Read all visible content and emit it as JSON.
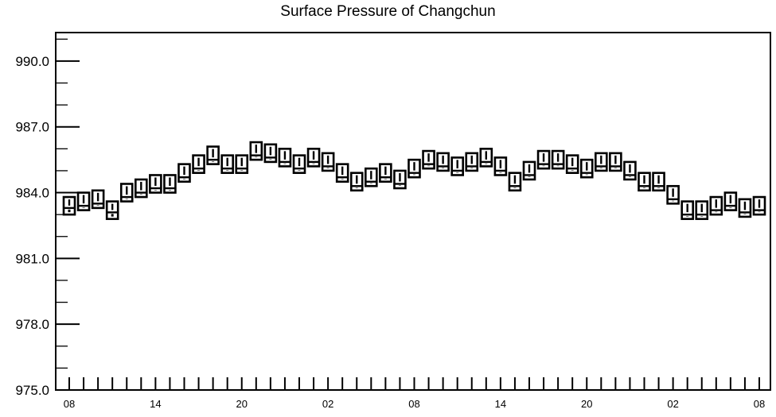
{
  "chart_data": {
    "type": "box",
    "title": "Surface Pressure of Changchun",
    "xlabel": "",
    "ylabel": "",
    "ylim": [
      975.0,
      991.3
    ],
    "y_ticks": [
      "975.0",
      "978.0",
      "981.0",
      "984.0",
      "987.0",
      "990.0"
    ],
    "y_tick_values": [
      975.0,
      978.0,
      981.0,
      984.0,
      987.0,
      990.0
    ],
    "x_tick_labels": [
      "08",
      "14",
      "20",
      "02",
      "08",
      "14",
      "20",
      "02",
      "08"
    ],
    "x_tick_label_index": [
      0,
      6,
      12,
      18,
      24,
      30,
      36,
      42,
      48
    ],
    "hours": [
      8,
      9,
      10,
      11,
      12,
      13,
      14,
      15,
      16,
      17,
      18,
      19,
      20,
      21,
      22,
      23,
      0,
      1,
      2,
      3,
      4,
      5,
      6,
      7,
      8,
      9,
      10,
      11,
      12,
      13,
      14,
      15,
      16,
      17,
      18,
      19,
      20,
      21,
      22,
      23,
      0,
      1,
      2,
      3,
      4,
      5,
      6,
      7,
      8
    ],
    "series": [
      {
        "box_low": [
          983.0,
          983.2,
          983.3,
          982.8,
          983.6,
          983.8,
          984.0,
          984.0,
          984.5,
          984.9,
          985.3,
          984.9,
          984.9,
          985.5,
          985.4,
          985.2,
          984.9,
          985.2,
          985.0,
          984.5,
          984.1,
          984.3,
          984.5,
          984.2,
          984.7,
          985.1,
          985.0,
          984.8,
          985.0,
          985.2,
          984.8,
          984.1,
          984.6,
          985.1,
          985.1,
          984.9,
          984.7,
          985.0,
          985.0,
          984.6,
          984.1,
          984.1,
          983.5,
          982.8,
          982.8,
          983.0,
          983.2,
          982.9,
          983.0
        ],
        "box_high": [
          983.8,
          984.0,
          984.1,
          983.6,
          984.4,
          984.6,
          984.8,
          984.8,
          985.3,
          985.7,
          986.1,
          985.7,
          985.7,
          986.3,
          986.2,
          986.0,
          985.7,
          986.0,
          985.8,
          985.3,
          984.9,
          985.1,
          985.3,
          985.0,
          985.5,
          985.9,
          985.8,
          985.6,
          985.8,
          986.0,
          985.6,
          984.9,
          985.4,
          985.9,
          985.9,
          985.7,
          985.5,
          985.8,
          985.8,
          985.4,
          984.9,
          984.9,
          984.3,
          983.6,
          983.6,
          983.8,
          984.0,
          983.7,
          983.8
        ],
        "median": [
          983.3,
          983.4,
          983.5,
          983.1,
          983.8,
          984.0,
          984.2,
          984.2,
          984.7,
          985.1,
          985.5,
          985.1,
          985.1,
          985.7,
          985.6,
          985.4,
          985.1,
          985.4,
          985.2,
          984.7,
          984.3,
          984.5,
          984.7,
          984.4,
          984.9,
          985.3,
          985.2,
          985.0,
          985.2,
          985.4,
          985.0,
          984.3,
          984.8,
          985.3,
          985.3,
          985.1,
          984.9,
          985.2,
          985.2,
          984.8,
          984.3,
          984.3,
          983.7,
          983.0,
          983.0,
          983.2,
          983.4,
          983.1,
          983.2
        ]
      }
    ]
  }
}
